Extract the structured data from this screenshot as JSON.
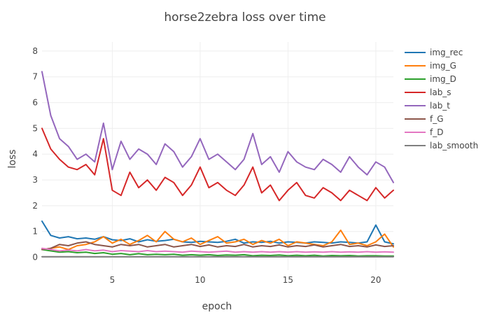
{
  "chart_data": {
    "type": "line",
    "title": "horse2zebra loss over time",
    "xlabel": "epoch",
    "ylabel": "loss",
    "xlim": [
      1,
      21
    ],
    "ylim": [
      -0.5,
      8.35
    ],
    "x_ticks": [
      5,
      10,
      15,
      20
    ],
    "y_ticks": [
      0,
      1,
      2,
      3,
      4,
      5,
      6,
      7,
      8
    ],
    "grid": true,
    "legend_position": "top-right",
    "x": [
      1,
      1.5,
      2,
      2.5,
      3,
      3.5,
      4,
      4.5,
      5,
      5.5,
      6,
      6.5,
      7,
      7.5,
      8,
      8.5,
      9,
      9.5,
      10,
      10.5,
      11,
      11.5,
      12,
      12.5,
      13,
      13.5,
      14,
      14.5,
      15,
      15.5,
      16,
      16.5,
      17,
      17.5,
      18,
      18.5,
      19,
      19.5,
      20,
      20.5,
      21
    ],
    "series": [
      {
        "name": "img_rec",
        "color": "#1f77b4",
        "values": [
          1.4,
          0.85,
          0.75,
          0.8,
          0.72,
          0.75,
          0.7,
          0.8,
          0.68,
          0.65,
          0.72,
          0.6,
          0.68,
          0.62,
          0.65,
          0.7,
          0.6,
          0.58,
          0.62,
          0.6,
          0.58,
          0.62,
          0.7,
          0.55,
          0.6,
          0.58,
          0.62,
          0.55,
          0.6,
          0.58,
          0.55,
          0.6,
          0.58,
          0.55,
          0.6,
          0.58,
          0.55,
          0.6,
          1.25,
          0.6,
          0.52
        ]
      },
      {
        "name": "img_G",
        "color": "#ff7f0e",
        "values": [
          0.3,
          0.35,
          0.4,
          0.3,
          0.45,
          0.5,
          0.6,
          0.8,
          0.55,
          0.7,
          0.5,
          0.65,
          0.85,
          0.6,
          1.0,
          0.7,
          0.6,
          0.75,
          0.5,
          0.65,
          0.8,
          0.55,
          0.6,
          0.7,
          0.5,
          0.65,
          0.55,
          0.7,
          0.45,
          0.6,
          0.55,
          0.5,
          0.45,
          0.6,
          1.05,
          0.5,
          0.55,
          0.45,
          0.6,
          0.9,
          0.4
        ]
      },
      {
        "name": "img_D",
        "color": "#2ca02c",
        "values": [
          0.3,
          0.25,
          0.2,
          0.22,
          0.18,
          0.2,
          0.15,
          0.18,
          0.12,
          0.15,
          0.1,
          0.14,
          0.1,
          0.12,
          0.1,
          0.12,
          0.08,
          0.1,
          0.08,
          0.1,
          0.07,
          0.09,
          0.08,
          0.1,
          0.06,
          0.08,
          0.07,
          0.09,
          0.06,
          0.08,
          0.06,
          0.08,
          0.05,
          0.07,
          0.06,
          0.07,
          0.05,
          0.06,
          0.06,
          0.05,
          0.05
        ]
      },
      {
        "name": "lab_s",
        "color": "#d62728",
        "values": [
          5.0,
          4.2,
          3.8,
          3.5,
          3.4,
          3.6,
          3.2,
          4.6,
          2.6,
          2.4,
          3.3,
          2.7,
          3.0,
          2.6,
          3.1,
          2.9,
          2.4,
          2.8,
          3.5,
          2.7,
          2.9,
          2.6,
          2.4,
          2.8,
          3.5,
          2.5,
          2.8,
          2.2,
          2.6,
          2.9,
          2.4,
          2.3,
          2.7,
          2.5,
          2.2,
          2.6,
          2.4,
          2.2,
          2.7,
          2.3,
          2.6
        ]
      },
      {
        "name": "lab_t",
        "color": "#9467bd",
        "values": [
          7.2,
          5.5,
          4.6,
          4.3,
          3.8,
          4.0,
          3.7,
          5.2,
          3.4,
          4.5,
          3.8,
          4.2,
          4.0,
          3.6,
          4.4,
          4.1,
          3.5,
          3.9,
          4.6,
          3.8,
          4.0,
          3.7,
          3.4,
          3.8,
          4.8,
          3.6,
          3.9,
          3.3,
          4.1,
          3.7,
          3.5,
          3.4,
          3.8,
          3.6,
          3.3,
          3.9,
          3.5,
          3.2,
          3.7,
          3.5,
          2.9
        ]
      },
      {
        "name": "f_G",
        "color": "#8c564b",
        "values": [
          0.3,
          0.35,
          0.5,
          0.45,
          0.55,
          0.6,
          0.5,
          0.45,
          0.4,
          0.5,
          0.45,
          0.5,
          0.4,
          0.45,
          0.5,
          0.4,
          0.45,
          0.5,
          0.42,
          0.48,
          0.4,
          0.45,
          0.42,
          0.5,
          0.4,
          0.45,
          0.42,
          0.48,
          0.4,
          0.45,
          0.42,
          0.48,
          0.4,
          0.45,
          0.5,
          0.42,
          0.45,
          0.4,
          0.48,
          0.42,
          0.45
        ]
      },
      {
        "name": "f_D",
        "color": "#e377c2",
        "values": [
          0.35,
          0.3,
          0.25,
          0.28,
          0.25,
          0.3,
          0.25,
          0.28,
          0.22,
          0.26,
          0.24,
          0.22,
          0.26,
          0.22,
          0.24,
          0.22,
          0.2,
          0.24,
          0.22,
          0.2,
          0.22,
          0.24,
          0.2,
          0.22,
          0.2,
          0.22,
          0.2,
          0.22,
          0.2,
          0.22,
          0.2,
          0.21,
          0.2,
          0.22,
          0.2,
          0.21,
          0.2,
          0.22,
          0.2,
          0.21,
          0.2
        ]
      },
      {
        "name": "lab_smooth",
        "color": "#7f7f7f",
        "values": [
          0.02,
          0.02,
          0.02,
          0.02,
          0.02,
          0.02,
          0.02,
          0.02,
          0.02,
          0.02,
          0.02,
          0.02,
          0.02,
          0.02,
          0.02,
          0.02,
          0.02,
          0.02,
          0.02,
          0.02,
          0.02,
          0.02,
          0.02,
          0.02,
          0.02,
          0.02,
          0.02,
          0.02,
          0.02,
          0.02,
          0.02,
          0.02,
          0.02,
          0.02,
          0.02,
          0.02,
          0.02,
          0.02,
          0.02,
          0.02,
          0.02
        ]
      }
    ]
  }
}
